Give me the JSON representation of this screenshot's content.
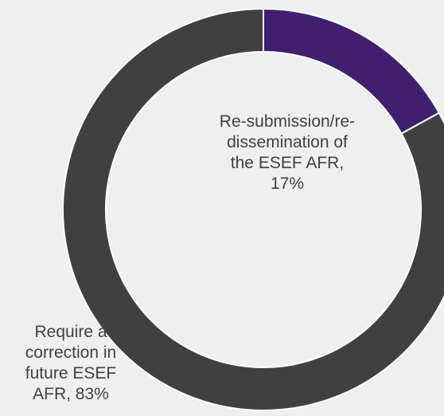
{
  "chart_data": {
    "type": "pie",
    "variant": "donut",
    "categories": [
      "Re-submission/re-dissemination of the ESEF AFR",
      "Require a correction in future ESEF AFR"
    ],
    "values": [
      17,
      83
    ],
    "unit": "%",
    "colors": [
      "#3f1f6e",
      "#404040"
    ],
    "data_labels": [
      "Re-submission/re-\ndissemination of\nthe ESEF AFR,\n17%",
      "Require a\ncorrection in\nfuture ESEF\nAFR, 83%"
    ],
    "start_angle": "top",
    "direction": "clockwise",
    "title": "",
    "legend": "none"
  }
}
